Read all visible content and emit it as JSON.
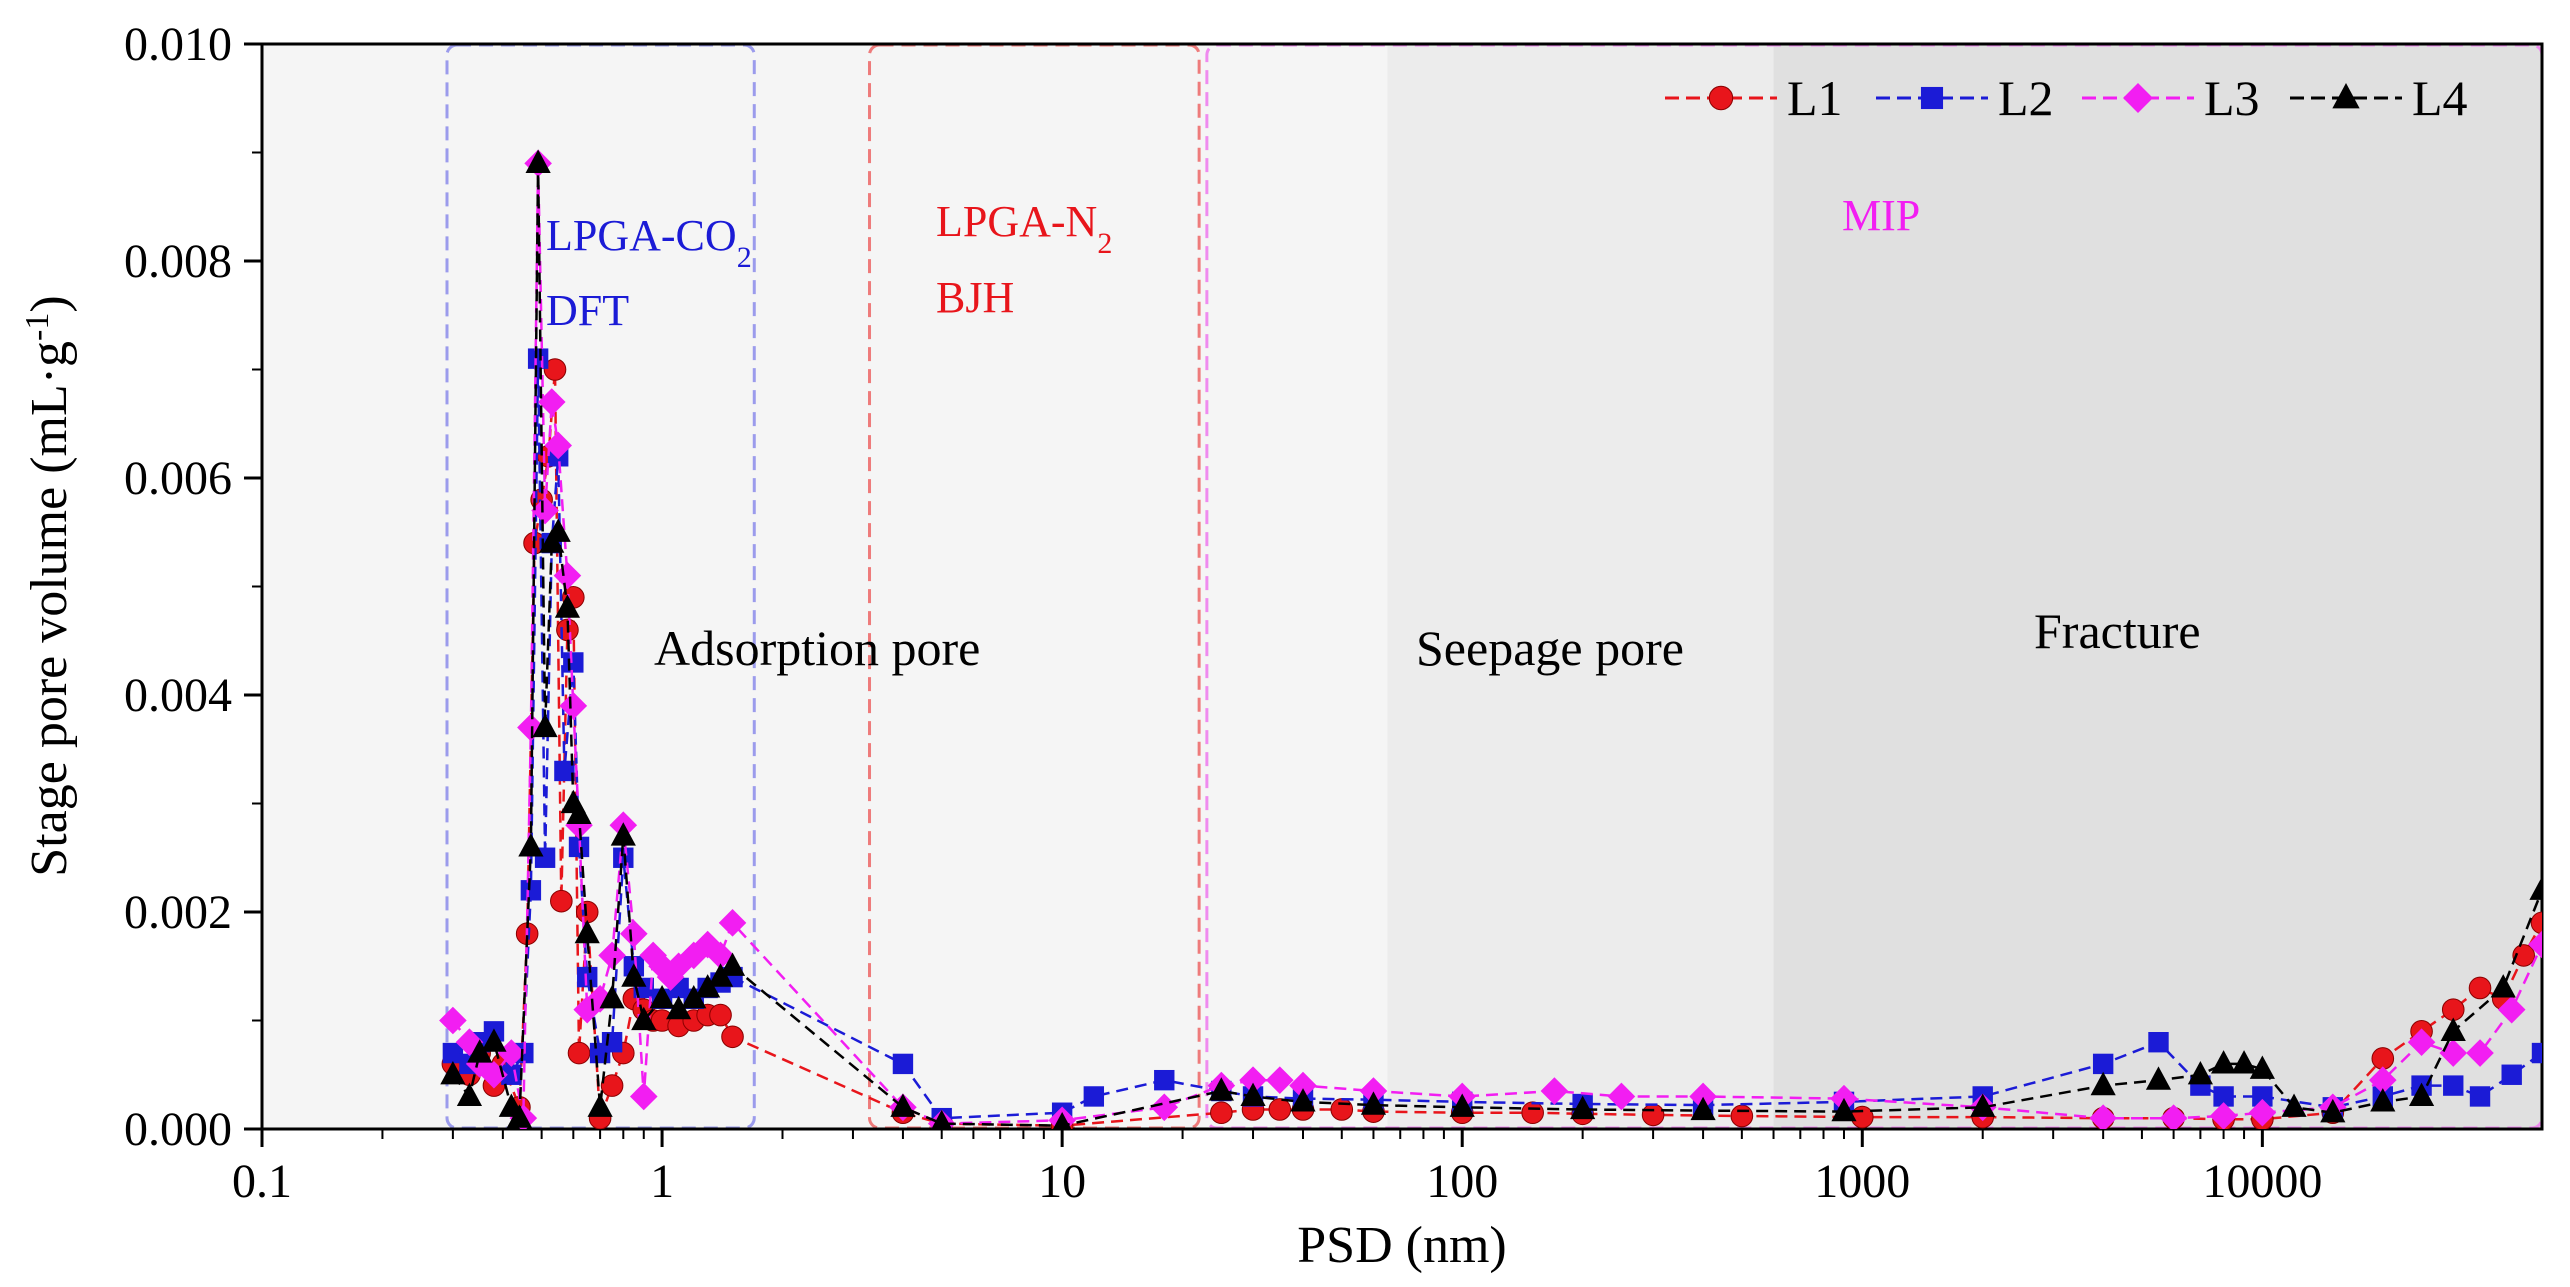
{
  "chart_data": {
    "type": "line",
    "xscale": "log",
    "xlabel": "PSD (nm)",
    "ylabel": "Stage pore volume (mL·g",
    "ylabel_sup": "-1",
    "ylabel_end": ")",
    "xlim": [
      0.1,
      50000
    ],
    "ylim": [
      0,
      0.01
    ],
    "x_ticks": [
      0.1,
      1,
      10,
      100,
      1000,
      10000
    ],
    "x_tick_labels": [
      "0.1",
      "1",
      "10",
      "100",
      "1000",
      "10000"
    ],
    "y_ticks": [
      0,
      0.002,
      0.004,
      0.006,
      0.008,
      0.01
    ],
    "y_tick_labels": [
      "0.000",
      "0.002",
      "0.004",
      "0.006",
      "0.008",
      "0.010"
    ],
    "legend_position": "top-right",
    "colors": {
      "L1": "#e8151b",
      "L2": "#1b1bd6",
      "L3": "#f21ef2",
      "L4": "#000000"
    },
    "regions": [
      {
        "name": "adsorption",
        "from": 0.1,
        "to": 65,
        "fill": "#f5f5f5"
      },
      {
        "name": "seepage",
        "from": 65,
        "to": 600,
        "fill": "#ececec"
      },
      {
        "name": "fracture",
        "from": 600,
        "to": 50000,
        "fill": "#e0e0e0"
      }
    ],
    "method_boxes": [
      {
        "name": "co2",
        "from": 0.29,
        "to": 1.7,
        "color": "#9b9bec"
      },
      {
        "name": "n2",
        "from": 3.3,
        "to": 22,
        "color": "#ee7b7b"
      },
      {
        "name": "mip",
        "from": 23,
        "to": 50000,
        "color": "#ef8bef"
      }
    ],
    "annotations": {
      "co2_method": "LPGA-CO",
      "co2_sub": "2",
      "co2_model": "DFT",
      "n2_method": "LPGA-N",
      "n2_sub": "2",
      "n2_model": "BJH",
      "mip": "MIP",
      "adsorption": "Adsorption pore",
      "seepage": "Seepage pore",
      "fracture": "Fracture"
    },
    "series": [
      {
        "name": "L1",
        "marker": "circle",
        "points": [
          [
            0.3,
            0.0006
          ],
          [
            0.33,
            0.0005
          ],
          [
            0.35,
            0.0007
          ],
          [
            0.38,
            0.0004
          ],
          [
            0.4,
            0.0006
          ],
          [
            0.44,
            0.0002
          ],
          [
            0.46,
            0.0018
          ],
          [
            0.48,
            0.0054
          ],
          [
            0.5,
            0.0058
          ],
          [
            0.52,
            0.0062
          ],
          [
            0.54,
            0.007
          ],
          [
            0.56,
            0.0021
          ],
          [
            0.58,
            0.0046
          ],
          [
            0.6,
            0.0049
          ],
          [
            0.62,
            0.0007
          ],
          [
            0.65,
            0.002
          ],
          [
            0.7,
            0.0001
          ],
          [
            0.75,
            0.0004
          ],
          [
            0.8,
            0.0007
          ],
          [
            0.85,
            0.0012
          ],
          [
            0.9,
            0.0011
          ],
          [
            0.95,
            0.001
          ],
          [
            1.0,
            0.001
          ],
          [
            1.1,
            0.00095
          ],
          [
            1.2,
            0.001
          ],
          [
            1.3,
            0.00105
          ],
          [
            1.4,
            0.00105
          ],
          [
            1.5,
            0.00085
          ],
          [
            4,
            0.00015
          ],
          [
            5,
            5e-05
          ],
          [
            10,
            3e-05
          ],
          [
            25,
            0.00015
          ],
          [
            30,
            0.00018
          ],
          [
            35,
            0.00018
          ],
          [
            40,
            0.00018
          ],
          [
            50,
            0.00018
          ],
          [
            60,
            0.00016
          ],
          [
            100,
            0.00015
          ],
          [
            150,
            0.00015
          ],
          [
            200,
            0.00014
          ],
          [
            300,
            0.00013
          ],
          [
            500,
            0.00012
          ],
          [
            1000,
            0.00011
          ],
          [
            2000,
            0.00011
          ],
          [
            4000,
            0.0001
          ],
          [
            6000,
            0.0001
          ],
          [
            8000,
            9e-05
          ],
          [
            10000,
            9e-05
          ],
          [
            15000,
            0.00015
          ],
          [
            20000,
            0.00065
          ],
          [
            25000,
            0.0009
          ],
          [
            30000,
            0.0011
          ],
          [
            35000,
            0.0013
          ],
          [
            40000,
            0.0012
          ],
          [
            45000,
            0.0016
          ],
          [
            50000,
            0.0019
          ]
        ]
      },
      {
        "name": "L2",
        "marker": "square",
        "points": [
          [
            0.3,
            0.0007
          ],
          [
            0.33,
            0.0006
          ],
          [
            0.35,
            0.0008
          ],
          [
            0.38,
            0.0009
          ],
          [
            0.42,
            0.0005
          ],
          [
            0.45,
            0.0007
          ],
          [
            0.47,
            0.0022
          ],
          [
            0.49,
            0.0071
          ],
          [
            0.51,
            0.0025
          ],
          [
            0.53,
            0.0054
          ],
          [
            0.55,
            0.0062
          ],
          [
            0.57,
            0.0033
          ],
          [
            0.6,
            0.0043
          ],
          [
            0.62,
            0.0026
          ],
          [
            0.65,
            0.0014
          ],
          [
            0.7,
            0.0007
          ],
          [
            0.75,
            0.0008
          ],
          [
            0.8,
            0.0025
          ],
          [
            0.85,
            0.0015
          ],
          [
            0.9,
            0.0013
          ],
          [
            1.0,
            0.0012
          ],
          [
            1.1,
            0.0013
          ],
          [
            1.2,
            0.0012
          ],
          [
            1.3,
            0.0013
          ],
          [
            1.4,
            0.00135
          ],
          [
            1.5,
            0.0014
          ],
          [
            4,
            0.0006
          ],
          [
            5,
            0.0001
          ],
          [
            10,
            0.00015
          ],
          [
            12,
            0.0003
          ],
          [
            18,
            0.00045
          ],
          [
            25,
            0.00035
          ],
          [
            30,
            0.0003
          ],
          [
            40,
            0.00028
          ],
          [
            60,
            0.00027
          ],
          [
            100,
            0.00025
          ],
          [
            200,
            0.00023
          ],
          [
            400,
            0.00022
          ],
          [
            900,
            0.00025
          ],
          [
            2000,
            0.0003
          ],
          [
            4000,
            0.0006
          ],
          [
            5500,
            0.0008
          ],
          [
            7000,
            0.0004
          ],
          [
            8000,
            0.0003
          ],
          [
            10000,
            0.0003
          ],
          [
            15000,
            0.0002
          ],
          [
            20000,
            0.0003
          ],
          [
            25000,
            0.0004
          ],
          [
            30000,
            0.0004
          ],
          [
            35000,
            0.0003
          ],
          [
            42000,
            0.0005
          ],
          [
            50000,
            0.0007
          ]
        ]
      },
      {
        "name": "L3",
        "marker": "diamond",
        "points": [
          [
            0.3,
            0.001
          ],
          [
            0.33,
            0.0008
          ],
          [
            0.35,
            0.0006
          ],
          [
            0.38,
            0.0005
          ],
          [
            0.42,
            0.0007
          ],
          [
            0.45,
            0.0001
          ],
          [
            0.47,
            0.0037
          ],
          [
            0.49,
            0.0089
          ],
          [
            0.51,
            0.0057
          ],
          [
            0.53,
            0.0067
          ],
          [
            0.55,
            0.0063
          ],
          [
            0.58,
            0.0051
          ],
          [
            0.6,
            0.0039
          ],
          [
            0.62,
            0.0028
          ],
          [
            0.65,
            0.0011
          ],
          [
            0.7,
            0.0012
          ],
          [
            0.75,
            0.0016
          ],
          [
            0.8,
            0.0028
          ],
          [
            0.85,
            0.0018
          ],
          [
            0.9,
            0.0003
          ],
          [
            0.95,
            0.0016
          ],
          [
            1.0,
            0.0015
          ],
          [
            1.05,
            0.0014
          ],
          [
            1.1,
            0.0015
          ],
          [
            1.2,
            0.0016
          ],
          [
            1.3,
            0.0017
          ],
          [
            1.4,
            0.0016
          ],
          [
            1.5,
            0.0019
          ],
          [
            4,
            0.0002
          ],
          [
            5,
            5e-05
          ],
          [
            10,
            8e-05
          ],
          [
            18,
            0.0002
          ],
          [
            25,
            0.0004
          ],
          [
            30,
            0.00045
          ],
          [
            35,
            0.00045
          ],
          [
            40,
            0.0004
          ],
          [
            60,
            0.00035
          ],
          [
            100,
            0.0003
          ],
          [
            170,
            0.00035
          ],
          [
            250,
            0.0003
          ],
          [
            400,
            0.0003
          ],
          [
            900,
            0.00028
          ],
          [
            2000,
            0.0002
          ],
          [
            4000,
            0.0001
          ],
          [
            6000,
            0.0001
          ],
          [
            8000,
            0.00012
          ],
          [
            10000,
            0.00015
          ],
          [
            15000,
            0.0002
          ],
          [
            20000,
            0.00045
          ],
          [
            25000,
            0.0008
          ],
          [
            30000,
            0.0007
          ],
          [
            35000,
            0.0007
          ],
          [
            42000,
            0.0011
          ],
          [
            50000,
            0.0017
          ]
        ]
      },
      {
        "name": "L4",
        "marker": "triangle",
        "points": [
          [
            0.3,
            0.0005
          ],
          [
            0.33,
            0.0003
          ],
          [
            0.35,
            0.0007
          ],
          [
            0.38,
            0.0008
          ],
          [
            0.42,
            0.0002
          ],
          [
            0.44,
            0.0001
          ],
          [
            0.47,
            0.0026
          ],
          [
            0.49,
            0.0089
          ],
          [
            0.51,
            0.0037
          ],
          [
            0.53,
            0.0054
          ],
          [
            0.55,
            0.0055
          ],
          [
            0.58,
            0.0048
          ],
          [
            0.6,
            0.003
          ],
          [
            0.62,
            0.0029
          ],
          [
            0.65,
            0.0018
          ],
          [
            0.7,
            0.0002
          ],
          [
            0.75,
            0.0012
          ],
          [
            0.8,
            0.0027
          ],
          [
            0.85,
            0.0014
          ],
          [
            0.9,
            0.001
          ],
          [
            1.0,
            0.0012
          ],
          [
            1.1,
            0.0011
          ],
          [
            1.2,
            0.0012
          ],
          [
            1.3,
            0.0013
          ],
          [
            1.4,
            0.0014
          ],
          [
            1.5,
            0.0015
          ],
          [
            4,
            0.0002
          ],
          [
            5,
            5e-05
          ],
          [
            10,
            3e-05
          ],
          [
            25,
            0.00035
          ],
          [
            30,
            0.0003
          ],
          [
            40,
            0.00025
          ],
          [
            60,
            0.00022
          ],
          [
            100,
            0.0002
          ],
          [
            200,
            0.00018
          ],
          [
            400,
            0.00017
          ],
          [
            900,
            0.00016
          ],
          [
            2000,
            0.0002
          ],
          [
            4000,
            0.0004
          ],
          [
            5500,
            0.00045
          ],
          [
            7000,
            0.0005
          ],
          [
            8000,
            0.0006
          ],
          [
            9000,
            0.0006
          ],
          [
            10000,
            0.00055
          ],
          [
            12000,
            0.0002
          ],
          [
            15000,
            0.00015
          ],
          [
            20000,
            0.00025
          ],
          [
            25000,
            0.0003
          ],
          [
            30000,
            0.0009
          ],
          [
            40000,
            0.0013
          ],
          [
            50000,
            0.0022
          ]
        ]
      }
    ]
  }
}
